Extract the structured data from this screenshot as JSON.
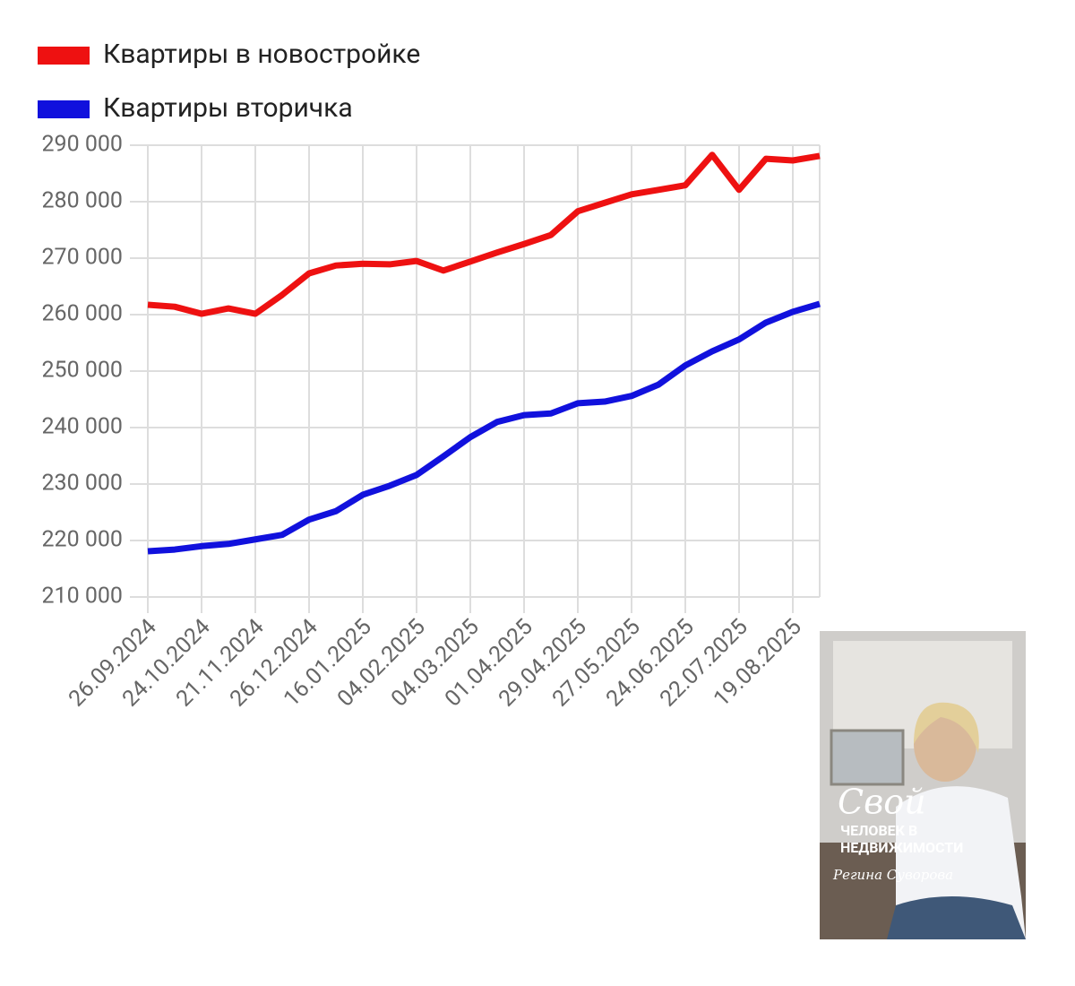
{
  "chart_data": {
    "type": "line",
    "categories": [
      "26.09.2024",
      null,
      "24.10.2024",
      null,
      "21.11.2024",
      null,
      "26.12.2024",
      null,
      "16.01.2025",
      null,
      "04.02.2025",
      null,
      "04.03.2025",
      null,
      "01.04.2025",
      null,
      "29.04.2025",
      null,
      "27.05.2025",
      null,
      "24.06.2025",
      null,
      "22.07.2025",
      null,
      "19.08.2025",
      null
    ],
    "series": [
      {
        "name": "Квартиры в новостройке",
        "color": "#ee1111",
        "values": [
          261750,
          261400,
          260150,
          261100,
          260150,
          263500,
          267300,
          268700,
          269000,
          268900,
          269500,
          267800,
          269400,
          271000,
          272500,
          274100,
          278300,
          279800,
          281300,
          282100,
          282900,
          288300,
          282100,
          287600,
          287300,
          288100
        ]
      },
      {
        "name": "Квартиры вторичка",
        "color": "#1111dd",
        "values": [
          218100,
          218400,
          219000,
          219400,
          220200,
          221000,
          223700,
          225200,
          228100,
          229700,
          231600,
          234900,
          238300,
          241000,
          242200,
          242500,
          244300,
          244600,
          245600,
          247600,
          251000,
          253500,
          255600,
          258600,
          260500,
          261900
        ]
      }
    ],
    "ylim": [
      210000,
      290000
    ],
    "yticks": [
      {
        "value": 210000,
        "label": "210 000"
      },
      {
        "value": 220000,
        "label": "220 000"
      },
      {
        "value": 230000,
        "label": "230 000"
      },
      {
        "value": 240000,
        "label": "240 000"
      },
      {
        "value": 250000,
        "label": "250 000"
      },
      {
        "value": 260000,
        "label": "260 000"
      },
      {
        "value": 270000,
        "label": "270 000"
      },
      {
        "value": 280000,
        "label": "280 000"
      },
      {
        "value": 290000,
        "label": "290 000"
      }
    ],
    "grid": true,
    "legend": "top-left"
  },
  "book_cover": {
    "title": "Свой",
    "subtitle_line1": "ЧЕЛОВЕК В",
    "subtitle_line2": "НЕДВИЖИМОСТИ",
    "author": "Регина Суворова"
  }
}
